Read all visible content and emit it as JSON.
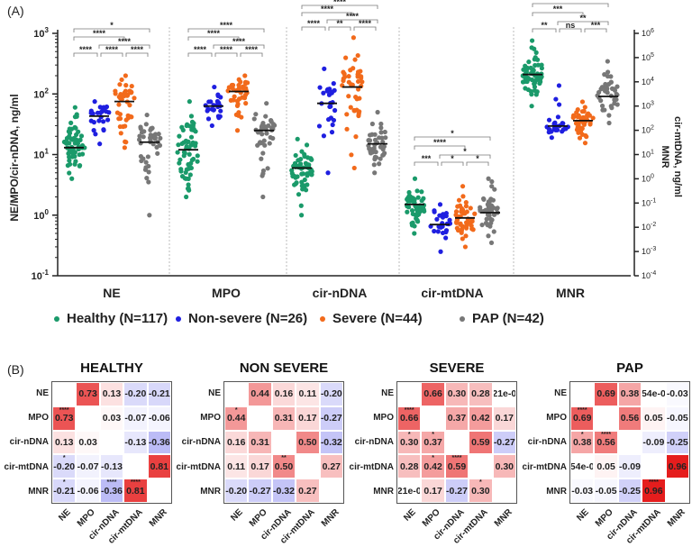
{
  "panel_a_label": "(A)",
  "panel_b_label": "(B)",
  "chart_data": [
    {
      "type": "scatter",
      "subtype": "dot-plot with median lines",
      "ylabel": "NE/MPO/cir-nDNA, ng/ml",
      "ylabel_right": "cir-mtDNA, ng/ml\nMNR",
      "ylabel_right_lines": [
        "cir-mtDNA, ng/ml",
        "MNR"
      ],
      "yscale": "log",
      "ylim": [
        0.1,
        1000
      ],
      "ylim_right": [
        0.0001,
        1000000
      ],
      "yticks": [
        "10-1",
        "100",
        "101",
        "102",
        "103"
      ],
      "yticks_right": [
        "10-4",
        "10-3",
        "10-2",
        "10-1",
        "100",
        "101",
        "102",
        "103",
        "104",
        "105",
        "106"
      ],
      "categories": [
        "NE",
        "MPO",
        "cir-nDNA",
        "cir-mtDNA",
        "MNR"
      ],
      "axis_for_category": [
        "left",
        "left",
        "left",
        "left",
        "right"
      ],
      "series": [
        {
          "name": "Healthy (N=117)",
          "n": 117,
          "color": "#1a9a6a",
          "median": [
            13,
            12,
            6,
            1.5,
            20000
          ],
          "min": [
            4,
            2,
            1,
            0.5,
            1000
          ],
          "max": [
            60,
            75,
            18,
            4,
            500000
          ]
        },
        {
          "name": "Non-severe (N=26)",
          "n": 26,
          "color": "#1f1fe0",
          "median": [
            43,
            63,
            70,
            0.7,
            150
          ],
          "min": [
            15,
            30,
            5,
            0.25,
            50
          ],
          "max": [
            75,
            130,
            260,
            1.5,
            7000
          ]
        },
        {
          "name": "Severe (N=44)",
          "n": 44,
          "color": "#f26a1b",
          "median": [
            75,
            110,
            130,
            0.9,
            250
          ],
          "min": [
            13,
            25,
            6,
            0.3,
            30
          ],
          "max": [
            200,
            200,
            850,
            3,
            1500
          ]
        },
        {
          "name": "PAP (N=42)",
          "n": 42,
          "color": "#777777",
          "median": [
            16,
            25,
            15,
            1.1,
            2500
          ],
          "min": [
            1,
            2,
            5,
            0.35,
            200
          ],
          "max": [
            45,
            70,
            50,
            4,
            70000
          ]
        }
      ],
      "significance": [
        [
          {
            "pair": [
              0,
              3
            ],
            "label": "*"
          },
          {
            "pair": [
              0,
              2
            ],
            "label": "****"
          },
          {
            "pair": [
              1,
              3
            ],
            "label": "****"
          },
          {
            "pair": [
              0,
              1
            ],
            "label": "****"
          },
          {
            "pair": [
              1,
              2
            ],
            "label": "****"
          },
          {
            "pair": [
              2,
              3
            ],
            "label": "****"
          }
        ],
        [
          {
            "pair": [
              0,
              3
            ],
            "label": "****"
          },
          {
            "pair": [
              0,
              2
            ],
            "label": "****"
          },
          {
            "pair": [
              1,
              3
            ],
            "label": "****"
          },
          {
            "pair": [
              0,
              1
            ],
            "label": "****"
          },
          {
            "pair": [
              1,
              2
            ],
            "label": "****"
          },
          {
            "pair": [
              2,
              3
            ],
            "label": "****"
          }
        ],
        [
          {
            "pair": [
              0,
              3
            ],
            "label": "****"
          },
          {
            "pair": [
              0,
              2
            ],
            "label": "****"
          },
          {
            "pair": [
              1,
              3
            ],
            "label": "****"
          },
          {
            "pair": [
              0,
              1
            ],
            "label": "****"
          },
          {
            "pair": [
              1,
              2
            ],
            "label": "**"
          },
          {
            "pair": [
              2,
              3
            ],
            "label": "****"
          }
        ],
        [
          {
            "pair": [
              0,
              3
            ],
            "label": "*"
          },
          {
            "pair": [
              0,
              2
            ],
            "label": "****"
          },
          {
            "pair": [
              1,
              3
            ],
            "label": "*"
          },
          {
            "pair": [
              0,
              1
            ],
            "label": "***"
          },
          {
            "pair": [
              1,
              2
            ],
            "label": "*"
          },
          {
            "pair": [
              2,
              3
            ],
            "label": "*"
          }
        ],
        [
          {
            "pair": [
              0,
              3
            ],
            "label": "**"
          },
          {
            "pair": [
              0,
              2
            ],
            "label": "***"
          },
          {
            "pair": [
              1,
              3
            ],
            "label": "**"
          },
          {
            "pair": [
              0,
              1
            ],
            "label": "**"
          },
          {
            "pair": [
              1,
              2
            ],
            "label": "ns"
          },
          {
            "pair": [
              2,
              3
            ],
            "label": "***"
          }
        ]
      ],
      "legend_position": "bottom"
    },
    {
      "type": "heatmap",
      "variables": [
        "NE",
        "MPO",
        "cir-nDNA",
        "cir-mtDNA",
        "MNR"
      ],
      "colors": {
        "positive": "#e00000",
        "negative": "#3c3ce6"
      },
      "panels": [
        {
          "title": "HEALTHY",
          "matrix": [
            [
              "",
              "0.73",
              "0.13",
              "-0.20",
              "-0.21"
            ],
            [
              "0.73",
              "",
              "0.03",
              "-0.07",
              "-0.06"
            ],
            [
              "0.13",
              "0.03",
              "",
              "-0.13",
              "-0.36"
            ],
            [
              "-0.20",
              "-0.07",
              "-0.13",
              "",
              "0.81"
            ],
            [
              "-0.21",
              "-0.06",
              "-0.36",
              "0.81",
              ""
            ]
          ],
          "stars": [
            [
              "",
              "",
              "",
              "",
              ""
            ],
            [
              "****",
              "",
              "",
              "",
              ""
            ],
            [
              "",
              "",
              "",
              "",
              ""
            ],
            [
              "*",
              "",
              "",
              "",
              ""
            ],
            [
              "*",
              "",
              "****",
              "****",
              ""
            ]
          ]
        },
        {
          "title": "NON SEVERE",
          "matrix": [
            [
              "",
              "0.44",
              "0.16",
              "0.11",
              "-0.20"
            ],
            [
              "0.44",
              "",
              "0.31",
              "0.17",
              "-0.27"
            ],
            [
              "0.16",
              "0.31",
              "",
              "0.50",
              "-0.32"
            ],
            [
              "0.11",
              "0.17",
              "0.50",
              "",
              "0.27"
            ],
            [
              "-0.20",
              "-0.27",
              "-0.32",
              "0.27",
              ""
            ]
          ],
          "stars": [
            [
              "",
              "",
              "",
              "",
              ""
            ],
            [
              "*",
              "",
              "",
              "",
              ""
            ],
            [
              "",
              "",
              "",
              "",
              ""
            ],
            [
              "",
              "",
              "**",
              "",
              ""
            ],
            [
              "",
              "",
              "",
              "",
              ""
            ]
          ]
        },
        {
          "title": "SEVERE",
          "matrix": [
            [
              "",
              "0.66",
              "0.30",
              "0.28",
              "21e-0"
            ],
            [
              "0.66",
              "",
              "0.37",
              "0.42",
              "0.17"
            ],
            [
              "0.30",
              "0.37",
              "",
              "0.59",
              "-0.27"
            ],
            [
              "0.28",
              "0.42",
              "0.59",
              "",
              "0.30"
            ],
            [
              "21e-0",
              "0.17",
              "-0.27",
              "0.30",
              ""
            ]
          ],
          "stars": [
            [
              "",
              "",
              "",
              "",
              ""
            ],
            [
              "****",
              "",
              "",
              "",
              ""
            ],
            [
              "*",
              "*",
              "",
              "",
              ""
            ],
            [
              "",
              "*",
              "****",
              "",
              ""
            ],
            [
              "",
              "",
              "",
              "*",
              ""
            ]
          ]
        },
        {
          "title": "PAP",
          "matrix": [
            [
              "",
              "0.69",
              "0.38",
              "54e-0",
              "-0.03"
            ],
            [
              "0.69",
              "",
              "0.56",
              "0.05",
              "-0.05"
            ],
            [
              "0.38",
              "0.56",
              "",
              "-0.09",
              "-0.25"
            ],
            [
              "54e-0",
              "0.05",
              "-0.09",
              "",
              "0.96"
            ],
            [
              "-0.03",
              "-0.05",
              "-0.25",
              "0.96",
              ""
            ]
          ],
          "stars": [
            [
              "",
              "",
              "",
              "",
              ""
            ],
            [
              "****",
              "",
              "",
              "",
              ""
            ],
            [
              "*",
              "****",
              "",
              "",
              ""
            ],
            [
              "",
              "",
              "",
              "",
              ""
            ],
            [
              "",
              "",
              "",
              "****",
              ""
            ]
          ]
        }
      ]
    }
  ]
}
